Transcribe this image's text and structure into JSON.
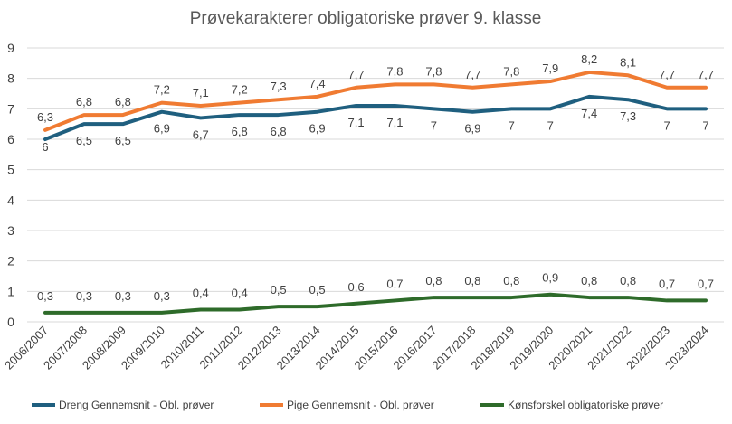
{
  "chart_data": {
    "type": "line",
    "title": "Prøvekarakterer obligatoriske prøver 9. klasse",
    "xlabel": "",
    "ylabel": "",
    "ylim": [
      0,
      9
    ],
    "yticks": [
      "0",
      "1",
      "2",
      "3",
      "4",
      "5",
      "6",
      "7",
      "8",
      "9"
    ],
    "grid": true,
    "legend_position": "bottom",
    "categories": [
      "2006/2007",
      "2007/2008",
      "2008/2009",
      "2009/2010",
      "2010/2011",
      "2011/2012",
      "2012/2013",
      "2013/2014",
      "2014/2015",
      "2015/2016",
      "2016/2017",
      "2017/2018",
      "2018/2019",
      "2019/2020",
      "2020/2021",
      "2021/2022",
      "2022/2023",
      "2023/2024"
    ],
    "series": [
      {
        "name": "Dreng Gennemsnit - Obl. prøver",
        "color": "#1F5F7F",
        "values": [
          6.0,
          6.5,
          6.5,
          6.9,
          6.7,
          6.8,
          6.8,
          6.9,
          7.1,
          7.1,
          7.0,
          6.9,
          7.0,
          7.0,
          7.4,
          7.3,
          7.0,
          7.0
        ],
        "labels": [
          "6",
          "6,5",
          "6,5",
          "6,9",
          "6,7",
          "6,8",
          "6,8",
          "6,9",
          "7,1",
          "7,1",
          "7",
          "6,9",
          "7",
          "7",
          "7,4",
          "7,3",
          "7",
          "7"
        ]
      },
      {
        "name": "Pige Gennemsnit - Obl. prøver",
        "color": "#F07B32",
        "values": [
          6.3,
          6.8,
          6.8,
          7.2,
          7.1,
          7.2,
          7.3,
          7.4,
          7.7,
          7.8,
          7.8,
          7.7,
          7.8,
          7.9,
          8.2,
          8.1,
          7.7,
          7.7
        ],
        "labels": [
          "6,3",
          "6,8",
          "6,8",
          "7,2",
          "7,1",
          "7,2",
          "7,3",
          "7,4",
          "7,7",
          "7,8",
          "7,8",
          "7,7",
          "7,8",
          "7,9",
          "8,2",
          "8,1",
          "7,7",
          "7,7"
        ]
      },
      {
        "name": "Kønsforskel obligatoriske prøver",
        "color": "#2E6B2A",
        "values": [
          0.3,
          0.3,
          0.3,
          0.3,
          0.4,
          0.4,
          0.5,
          0.5,
          0.6,
          0.7,
          0.8,
          0.8,
          0.8,
          0.9,
          0.8,
          0.8,
          0.7,
          0.7
        ],
        "labels": [
          "0,3",
          "0,3",
          "0,3",
          "0,3",
          "0,4",
          "0,4",
          "0,5",
          "0,5",
          "0,6",
          "0,7",
          "0,8",
          "0,8",
          "0,8",
          "0,9",
          "0,8",
          "0,8",
          "0,7",
          "0,7"
        ]
      }
    ]
  }
}
